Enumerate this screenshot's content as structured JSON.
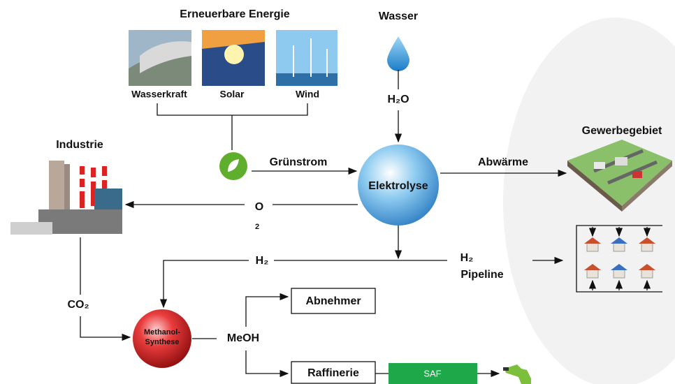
{
  "renewables": {
    "title": "Erneuerbare Energie",
    "sources": [
      "Wasserkraft",
      "Solar",
      "Wind"
    ]
  },
  "water": {
    "title": "Wasser",
    "formula": "H₂O"
  },
  "flows": {
    "green_power": "Grünstrom",
    "waste_heat": "Abwärme",
    "oxygen": {
      "symbol": "O",
      "index": "2"
    },
    "hydrogen": "H₂",
    "pipeline": [
      "H₂",
      "Pipeline"
    ],
    "co2": "CO₂",
    "methanol": "MeOH"
  },
  "nodes": {
    "electrolysis": "Elektrolyse",
    "industry": "Industrie",
    "commercial": "Gewerbegebiet",
    "methanol_synthesis": [
      "Methanol-",
      "Synthese"
    ],
    "customers": "Abnehmer",
    "refinery": "Raffinerie",
    "saf": "SAF"
  }
}
